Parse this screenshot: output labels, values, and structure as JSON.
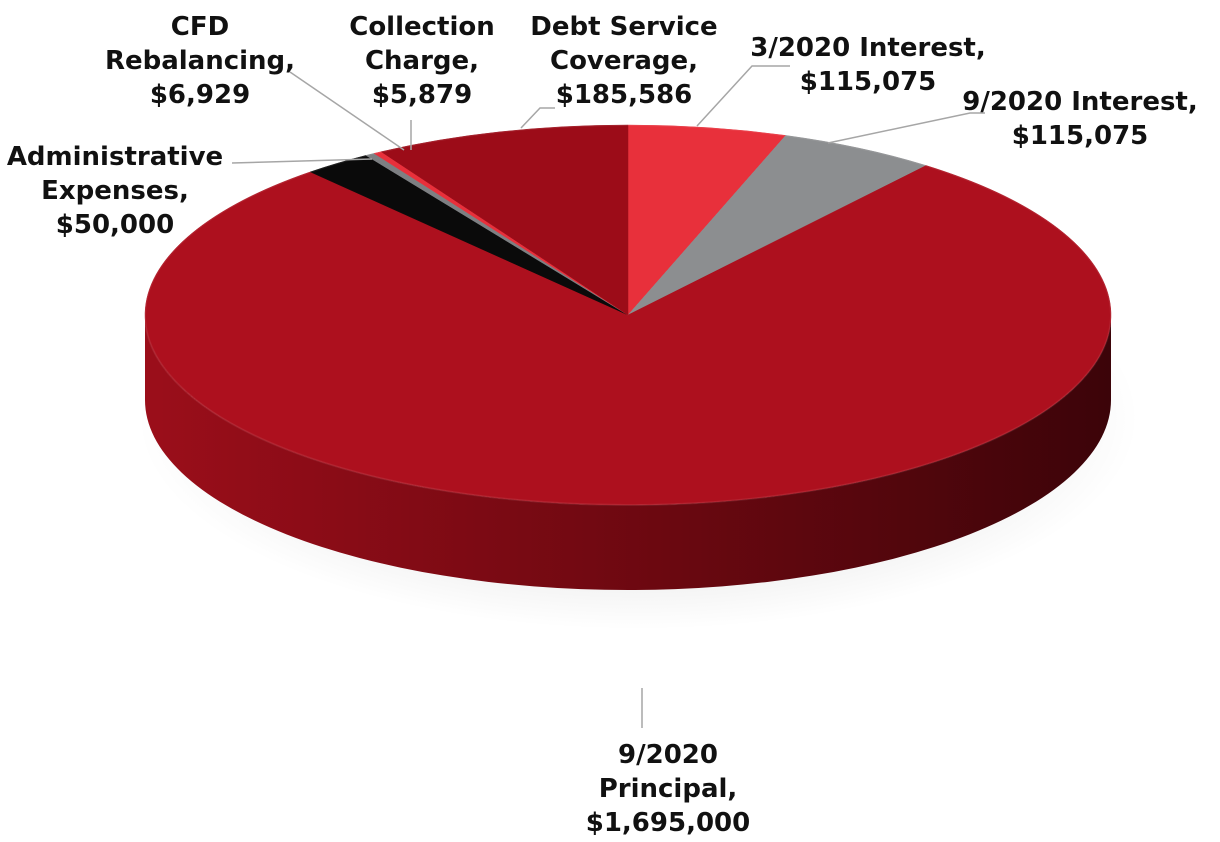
{
  "chart_data": {
    "type": "pie",
    "title": "",
    "style": "3d",
    "start_angle_deg": -90,
    "direction": "clockwise",
    "slices": [
      {
        "label_lines": [
          "3/2020 Interest,",
          "$115,075"
        ],
        "category": "3/2020 Interest",
        "value": 115075,
        "value_label": "$115,075",
        "color": "#e8303b"
      },
      {
        "label_lines": [
          "9/2020 Interest,",
          "$115,075"
        ],
        "category": "9/2020 Interest",
        "value": 115075,
        "value_label": "$115,075",
        "color": "#8c8e90"
      },
      {
        "label_lines": [
          "9/2020",
          "Principal,",
          "$1,695,000"
        ],
        "category": "9/2020 Principal",
        "value": 1695000,
        "value_label": "$1,695,000",
        "color": "#ad101e"
      },
      {
        "label_lines": [
          "Administrative",
          "Expenses,",
          "$50,000"
        ],
        "category": "Administrative Expenses",
        "value": 50000,
        "value_label": "$50,000",
        "color": "#0a0a0a"
      },
      {
        "label_lines": [
          "CFD",
          "Rebalancing,",
          "$6,929"
        ],
        "category": "CFD Rebalancing",
        "value": 6929,
        "value_label": "$6,929",
        "color": "#7d7f82"
      },
      {
        "label_lines": [
          "Collection",
          "Charge,",
          "$5,879"
        ],
        "category": "Collection Charge",
        "value": 5879,
        "value_label": "$5,879",
        "color": "#e8303b"
      },
      {
        "label_lines": [
          "Debt Service",
          "Coverage,",
          "$185,586"
        ],
        "category": "Debt Service Coverage",
        "value": 185586,
        "value_label": "$185,586",
        "color": "#9c0c18"
      }
    ]
  }
}
